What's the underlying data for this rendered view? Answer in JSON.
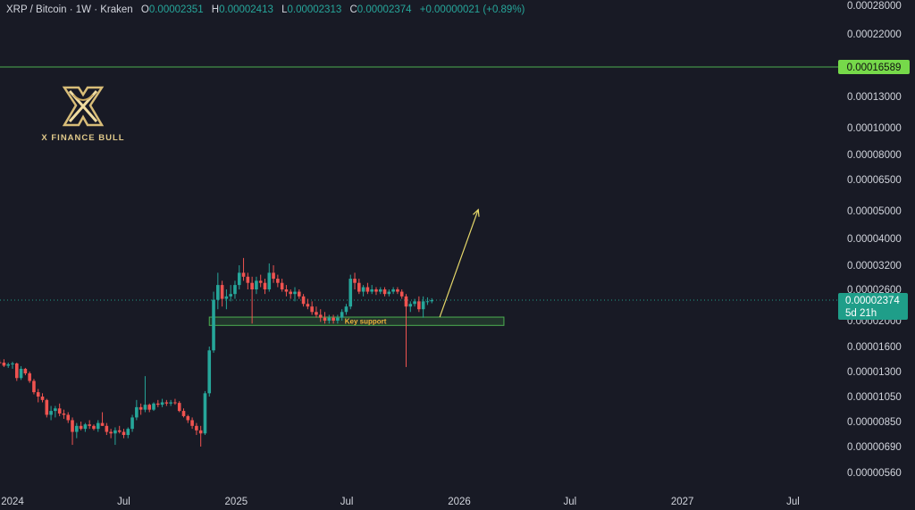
{
  "legend": {
    "symbol": "XRP / Bitcoin · 1W · Kraken",
    "open_label": "O",
    "open": "0.00002351",
    "high_label": "H",
    "high": "0.00002413",
    "low_label": "L",
    "low": "0.00002313",
    "close_label": "C",
    "close": "0.00002374",
    "change": "+0.00000021 (+0.89%)"
  },
  "logo": {
    "brand": "X FINANCE BULL",
    "icon": "crossed-x-bull-logo"
  },
  "colors": {
    "background": "#181a25",
    "up": "#26a69a",
    "down": "#ef5350",
    "target_line": "#4caf50",
    "target_badge": "#76d94a",
    "price_badge": "#1f9e89",
    "support_zone": "#4caf50",
    "arrow": "#e6d86a",
    "annotation_text": "#f0b43c"
  },
  "chart_data": {
    "type": "candlestick",
    "title": "XRP / Bitcoin · 1W · Kraken",
    "y_scale": "log",
    "y_tick_labels": [
      "0.00028000",
      "0.00022000",
      "0.00016589",
      "0.00013000",
      "0.00010000",
      "0.00008000",
      "0.00006500",
      "0.00005000",
      "0.00004000",
      "0.00003200",
      "0.00002600",
      "0.00002374",
      "0.00002000",
      "0.00001600",
      "0.00001300",
      "0.00001050",
      "0.00000850",
      "0.00000690",
      "0.00000560"
    ],
    "x_tick_labels": [
      "2024",
      "Jul",
      "2025",
      "Jul",
      "2026",
      "Jul",
      "2027",
      "Jul"
    ],
    "grid": false,
    "horizontal_levels": [
      {
        "price": 0.00016589,
        "label": "0.00016589"
      }
    ],
    "last_price": {
      "price": 2.374e-05,
      "label": "0.00002374",
      "countdown": "5d 21h"
    },
    "zones": [
      {
        "label": "Key support",
        "from_date": "2024-11-18",
        "to_date": "2026-03-15",
        "low": 1.92e-05,
        "high": 2.06e-05
      }
    ],
    "arrows": [
      {
        "from_date": "2025-11-30",
        "from_price": 2.06e-05,
        "to_date": "2026-02-01",
        "to_price": 5.05e-05
      }
    ],
    "candles": [
      {
        "d": "2023-12-11",
        "o": 1.405e-05,
        "h": 1.435e-05,
        "l": 1.385e-05,
        "c": 1.4e-05
      },
      {
        "d": "2023-12-18",
        "o": 1.4e-05,
        "h": 1.44e-05,
        "l": 1.35e-05,
        "c": 1.365e-05
      },
      {
        "d": "2023-12-25",
        "o": 1.365e-05,
        "h": 1.4e-05,
        "l": 1.34e-05,
        "c": 1.38e-05
      },
      {
        "d": "2024-01-01",
        "o": 1.38e-05,
        "h": 1.41e-05,
        "l": 1.33e-05,
        "c": 1.39e-05
      },
      {
        "d": "2024-01-08",
        "o": 1.39e-05,
        "h": 1.4e-05,
        "l": 1.2e-05,
        "c": 1.23e-05
      },
      {
        "d": "2024-01-15",
        "o": 1.23e-05,
        "h": 1.36e-05,
        "l": 1.21e-05,
        "c": 1.33e-05
      },
      {
        "d": "2024-01-22",
        "o": 1.33e-05,
        "h": 1.34e-05,
        "l": 1.26e-05,
        "c": 1.28e-05
      },
      {
        "d": "2024-01-29",
        "o": 1.28e-05,
        "h": 1.3e-05,
        "l": 1.18e-05,
        "c": 1.2e-05
      },
      {
        "d": "2024-02-05",
        "o": 1.2e-05,
        "h": 1.22e-05,
        "l": 1.07e-05,
        "c": 1.09e-05
      },
      {
        "d": "2024-02-12",
        "o": 1.09e-05,
        "h": 1.12e-05,
        "l": 1e-05,
        "c": 1.05e-05
      },
      {
        "d": "2024-02-19",
        "o": 1.05e-05,
        "h": 1.08e-05,
        "l": 1e-05,
        "c": 1.02e-05
      },
      {
        "d": "2024-02-26",
        "o": 1.02e-05,
        "h": 1.03e-05,
        "l": 8.8e-06,
        "c": 9e-06
      },
      {
        "d": "2024-03-04",
        "o": 9e-06,
        "h": 9.7e-06,
        "l": 8.6e-06,
        "c": 9.3e-06
      },
      {
        "d": "2024-03-11",
        "o": 9.3e-06,
        "h": 9.7e-06,
        "l": 8.8e-06,
        "c": 9.5e-06
      },
      {
        "d": "2024-03-18",
        "o": 9.5e-06,
        "h": 9.9e-06,
        "l": 8.9e-06,
        "c": 9.1e-06
      },
      {
        "d": "2024-03-25",
        "o": 9.1e-06,
        "h": 9.4e-06,
        "l": 8.7e-06,
        "c": 9e-06
      },
      {
        "d": "2024-04-01",
        "o": 9e-06,
        "h": 9.2e-06,
        "l": 8.4e-06,
        "c": 8.6e-06
      },
      {
        "d": "2024-04-08",
        "o": 8.6e-06,
        "h": 8.8e-06,
        "l": 7e-06,
        "c": 7.8e-06
      },
      {
        "d": "2024-04-15",
        "o": 7.8e-06,
        "h": 8.4e-06,
        "l": 7.4e-06,
        "c": 8.2e-06
      },
      {
        "d": "2024-04-22",
        "o": 8.2e-06,
        "h": 8.5e-06,
        "l": 7.9e-06,
        "c": 8e-06
      },
      {
        "d": "2024-04-29",
        "o": 8e-06,
        "h": 8.4e-06,
        "l": 7.8e-06,
        "c": 8.3e-06
      },
      {
        "d": "2024-05-06",
        "o": 8.3e-06,
        "h": 8.6e-06,
        "l": 8e-06,
        "c": 8.2e-06
      },
      {
        "d": "2024-05-13",
        "o": 8.2e-06,
        "h": 8.3e-06,
        "l": 7.9e-06,
        "c": 8e-06
      },
      {
        "d": "2024-05-20",
        "o": 8e-06,
        "h": 8.6e-06,
        "l": 7.8e-06,
        "c": 8.4e-06
      },
      {
        "d": "2024-05-27",
        "o": 8.4e-06,
        "h": 9.2e-06,
        "l": 8.2e-06,
        "c": 8.2e-06
      },
      {
        "d": "2024-06-03",
        "o": 8.2e-06,
        "h": 8.4e-06,
        "l": 7.6e-06,
        "c": 7.8e-06
      },
      {
        "d": "2024-06-10",
        "o": 7.8e-06,
        "h": 8e-06,
        "l": 7.4e-06,
        "c": 7.7e-06
      },
      {
        "d": "2024-06-17",
        "o": 7.7e-06,
        "h": 8.1e-06,
        "l": 7e-06,
        "c": 7.9e-06
      },
      {
        "d": "2024-06-24",
        "o": 7.9e-06,
        "h": 8.2e-06,
        "l": 7.7e-06,
        "c": 7.8e-06
      },
      {
        "d": "2024-07-01",
        "o": 7.8e-06,
        "h": 8e-06,
        "l": 7.4e-06,
        "c": 7.6e-06
      },
      {
        "d": "2024-07-08",
        "o": 7.6e-06,
        "h": 8.1e-06,
        "l": 7.4e-06,
        "c": 8e-06
      },
      {
        "d": "2024-07-15",
        "o": 8e-06,
        "h": 9e-06,
        "l": 7.8e-06,
        "c": 8.8e-06
      },
      {
        "d": "2024-07-22",
        "o": 8.8e-06,
        "h": 1.02e-05,
        "l": 8.6e-06,
        "c": 9.6e-06
      },
      {
        "d": "2024-07-29",
        "o": 9.6e-06,
        "h": 9.9e-06,
        "l": 9e-06,
        "c": 9.4e-06
      },
      {
        "d": "2024-08-05",
        "o": 9.4e-06,
        "h": 1.25e-05,
        "l": 9.2e-06,
        "c": 9.8e-06
      },
      {
        "d": "2024-08-12",
        "o": 9.8e-06,
        "h": 9.9e-06,
        "l": 9.2e-06,
        "c": 9.4e-06
      },
      {
        "d": "2024-08-19",
        "o": 9.4e-06,
        "h": 1e-05,
        "l": 9.3e-06,
        "c": 9.9e-06
      },
      {
        "d": "2024-08-26",
        "o": 9.9e-06,
        "h": 1.02e-05,
        "l": 9.6e-06,
        "c": 9.8e-06
      },
      {
        "d": "2024-09-02",
        "o": 9.8e-06,
        "h": 1.03e-05,
        "l": 9.6e-06,
        "c": 1e-05
      },
      {
        "d": "2024-09-09",
        "o": 1e-05,
        "h": 1.02e-05,
        "l": 9.7e-06,
        "c": 9.9e-06
      },
      {
        "d": "2024-09-16",
        "o": 9.9e-06,
        "h": 1.02e-05,
        "l": 9.7e-06,
        "c": 1e-05
      },
      {
        "d": "2024-09-23",
        "o": 1e-05,
        "h": 1.03e-05,
        "l": 9.8e-06,
        "c": 9.95e-06
      },
      {
        "d": "2024-09-30",
        "o": 9.95e-06,
        "h": 1.01e-05,
        "l": 9.2e-06,
        "c": 9.3e-06
      },
      {
        "d": "2024-10-07",
        "o": 9.3e-06,
        "h": 9.5e-06,
        "l": 8.8e-06,
        "c": 8.9e-06
      },
      {
        "d": "2024-10-14",
        "o": 8.9e-06,
        "h": 9e-06,
        "l": 8.4e-06,
        "c": 8.6e-06
      },
      {
        "d": "2024-10-21",
        "o": 8.6e-06,
        "h": 8.8e-06,
        "l": 8e-06,
        "c": 8.2e-06
      },
      {
        "d": "2024-10-28",
        "o": 8.2e-06,
        "h": 8.4e-06,
        "l": 7.6e-06,
        "c": 7.9e-06
      },
      {
        "d": "2024-11-04",
        "o": 7.9e-06,
        "h": 8.2e-06,
        "l": 6.9e-06,
        "c": 7.7e-06
      },
      {
        "d": "2024-11-11",
        "o": 7.7e-06,
        "h": 1.1e-05,
        "l": 7.6e-06,
        "c": 1.08e-05
      },
      {
        "d": "2024-11-18",
        "o": 1.08e-05,
        "h": 1.6e-05,
        "l": 1.05e-05,
        "c": 1.55e-05
      },
      {
        "d": "2024-11-25",
        "o": 1.55e-05,
        "h": 2.55e-05,
        "l": 1.52e-05,
        "c": 2.38e-05
      },
      {
        "d": "2024-12-02",
        "o": 2.38e-05,
        "h": 3e-05,
        "l": 2.2e-05,
        "c": 2.7e-05
      },
      {
        "d": "2024-12-09",
        "o": 2.7e-05,
        "h": 2.8e-05,
        "l": 2.25e-05,
        "c": 2.4e-05
      },
      {
        "d": "2024-12-16",
        "o": 2.4e-05,
        "h": 2.6e-05,
        "l": 2.2e-05,
        "c": 2.45e-05
      },
      {
        "d": "2024-12-23",
        "o": 2.45e-05,
        "h": 2.7e-05,
        "l": 2.35e-05,
        "c": 2.5e-05
      },
      {
        "d": "2024-12-30",
        "o": 2.5e-05,
        "h": 2.8e-05,
        "l": 2.4e-05,
        "c": 2.7e-05
      },
      {
        "d": "2025-01-06",
        "o": 2.7e-05,
        "h": 3.2e-05,
        "l": 2.6e-05,
        "c": 3e-05
      },
      {
        "d": "2025-01-13",
        "o": 3e-05,
        "h": 3.4e-05,
        "l": 2.8e-05,
        "c": 2.9e-05
      },
      {
        "d": "2025-01-20",
        "o": 2.9e-05,
        "h": 3e-05,
        "l": 2.6e-05,
        "c": 2.75e-05
      },
      {
        "d": "2025-01-27",
        "o": 2.75e-05,
        "h": 2.9e-05,
        "l": 1.95e-05,
        "c": 2.6e-05
      },
      {
        "d": "2025-02-03",
        "o": 2.6e-05,
        "h": 2.9e-05,
        "l": 2.5e-05,
        "c": 2.8e-05
      },
      {
        "d": "2025-02-10",
        "o": 2.8e-05,
        "h": 2.95e-05,
        "l": 2.65e-05,
        "c": 2.75e-05
      },
      {
        "d": "2025-02-17",
        "o": 2.75e-05,
        "h": 2.85e-05,
        "l": 2.5e-05,
        "c": 2.6e-05
      },
      {
        "d": "2025-02-24",
        "o": 2.6e-05,
        "h": 3.25e-05,
        "l": 2.55e-05,
        "c": 3e-05
      },
      {
        "d": "2025-03-03",
        "o": 3e-05,
        "h": 3.2e-05,
        "l": 2.75e-05,
        "c": 2.85e-05
      },
      {
        "d": "2025-03-10",
        "o": 2.85e-05,
        "h": 2.95e-05,
        "l": 2.65e-05,
        "c": 2.75e-05
      },
      {
        "d": "2025-03-17",
        "o": 2.75e-05,
        "h": 2.85e-05,
        "l": 2.55e-05,
        "c": 2.6e-05
      },
      {
        "d": "2025-03-24",
        "o": 2.6e-05,
        "h": 2.7e-05,
        "l": 2.45e-05,
        "c": 2.55e-05
      },
      {
        "d": "2025-03-31",
        "o": 2.55e-05,
        "h": 2.6e-05,
        "l": 2.4e-05,
        "c": 2.5e-05
      },
      {
        "d": "2025-04-07",
        "o": 2.5e-05,
        "h": 2.65e-05,
        "l": 2.35e-05,
        "c": 2.55e-05
      },
      {
        "d": "2025-04-14",
        "o": 2.55e-05,
        "h": 2.6e-05,
        "l": 2.4e-05,
        "c": 2.45e-05
      },
      {
        "d": "2025-04-21",
        "o": 2.45e-05,
        "h": 2.5e-05,
        "l": 2.25e-05,
        "c": 2.3e-05
      },
      {
        "d": "2025-04-28",
        "o": 2.3e-05,
        "h": 2.4e-05,
        "l": 2.2e-05,
        "c": 2.25e-05
      },
      {
        "d": "2025-05-05",
        "o": 2.25e-05,
        "h": 2.35e-05,
        "l": 2.1e-05,
        "c": 2.15e-05
      },
      {
        "d": "2025-05-12",
        "o": 2.15e-05,
        "h": 2.25e-05,
        "l": 2.05e-05,
        "c": 2.1e-05
      },
      {
        "d": "2025-05-19",
        "o": 2.1e-05,
        "h": 2.2e-05,
        "l": 1.98e-05,
        "c": 2.05e-05
      },
      {
        "d": "2025-05-26",
        "o": 2.05e-05,
        "h": 2.15e-05,
        "l": 1.95e-05,
        "c": 2e-05
      },
      {
        "d": "2025-06-02",
        "o": 2e-05,
        "h": 2.1e-05,
        "l": 1.95e-05,
        "c": 2.05e-05
      },
      {
        "d": "2025-06-09",
        "o": 2.05e-05,
        "h": 2.1e-05,
        "l": 1.95e-05,
        "c": 2e-05
      },
      {
        "d": "2025-06-16",
        "o": 2e-05,
        "h": 2.1e-05,
        "l": 1.95e-05,
        "c": 2.05e-05
      },
      {
        "d": "2025-06-23",
        "o": 2.05e-05,
        "h": 2.2e-05,
        "l": 2e-05,
        "c": 2.15e-05
      },
      {
        "d": "2025-06-30",
        "o": 2.15e-05,
        "h": 2.3e-05,
        "l": 2.1e-05,
        "c": 2.25e-05
      },
      {
        "d": "2025-07-07",
        "o": 2.25e-05,
        "h": 2.95e-05,
        "l": 2.2e-05,
        "c": 2.85e-05
      },
      {
        "d": "2025-07-14",
        "o": 2.85e-05,
        "h": 3e-05,
        "l": 2.6e-05,
        "c": 2.75e-05
      },
      {
        "d": "2025-07-21",
        "o": 2.75e-05,
        "h": 2.85e-05,
        "l": 2.5e-05,
        "c": 2.55e-05
      },
      {
        "d": "2025-07-28",
        "o": 2.55e-05,
        "h": 2.7e-05,
        "l": 2.45e-05,
        "c": 2.65e-05
      },
      {
        "d": "2025-08-04",
        "o": 2.65e-05,
        "h": 2.75e-05,
        "l": 2.5e-05,
        "c": 2.55e-05
      },
      {
        "d": "2025-08-11",
        "o": 2.55e-05,
        "h": 2.7e-05,
        "l": 2.5e-05,
        "c": 2.6e-05
      },
      {
        "d": "2025-08-18",
        "o": 2.6e-05,
        "h": 2.65e-05,
        "l": 2.48e-05,
        "c": 2.55e-05
      },
      {
        "d": "2025-08-25",
        "o": 2.55e-05,
        "h": 2.65e-05,
        "l": 2.5e-05,
        "c": 2.6e-05
      },
      {
        "d": "2025-09-01",
        "o": 2.6e-05,
        "h": 2.65e-05,
        "l": 2.45e-05,
        "c": 2.5e-05
      },
      {
        "d": "2025-09-08",
        "o": 2.5e-05,
        "h": 2.6e-05,
        "l": 2.45e-05,
        "c": 2.55e-05
      },
      {
        "d": "2025-09-15",
        "o": 2.55e-05,
        "h": 2.65e-05,
        "l": 2.5e-05,
        "c": 2.6e-05
      },
      {
        "d": "2025-09-22",
        "o": 2.6e-05,
        "h": 2.65e-05,
        "l": 2.5e-05,
        "c": 2.55e-05
      },
      {
        "d": "2025-09-29",
        "o": 2.55e-05,
        "h": 2.6e-05,
        "l": 2.4e-05,
        "c": 2.45e-05
      },
      {
        "d": "2025-10-06",
        "o": 2.45e-05,
        "h": 2.5e-05,
        "l": 1.35e-05,
        "c": 2.25e-05
      },
      {
        "d": "2025-10-13",
        "o": 2.25e-05,
        "h": 2.35e-05,
        "l": 2.15e-05,
        "c": 2.3e-05
      },
      {
        "d": "2025-10-20",
        "o": 2.3e-05,
        "h": 2.4e-05,
        "l": 2.25e-05,
        "c": 2.35e-05
      },
      {
        "d": "2025-10-27",
        "o": 2.35e-05,
        "h": 2.45e-05,
        "l": 2.15e-05,
        "c": 2.2e-05
      },
      {
        "d": "2025-11-03",
        "o": 2.2e-05,
        "h": 2.45e-05,
        "l": 2.05e-05,
        "c": 2.35e-05
      },
      {
        "d": "2025-11-10",
        "o": 2.35e-05,
        "h": 2.43e-05,
        "l": 2.28e-05,
        "c": 2.351e-05
      },
      {
        "d": "2025-11-17",
        "o": 2.351e-05,
        "h": 2.413e-05,
        "l": 2.313e-05,
        "c": 2.374e-05
      }
    ]
  }
}
